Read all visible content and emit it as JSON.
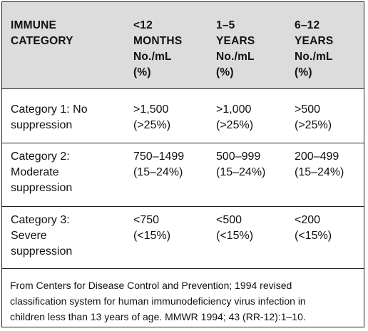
{
  "table": {
    "headers": [
      "IMMUNE\nCATEGORY",
      "<12\nMONTHS\nNo./mL\n(%)",
      "1–5\nYEARS\nNo./mL\n(%)",
      "6–12\nYEARS\nNo./mL\n(%)"
    ],
    "rows": [
      {
        "category": "Category 1: No\nsuppression",
        "col1": ">1,500\n(>25%)",
        "col2": ">1,000\n(>25%)",
        "col3": ">500\n(>25%)"
      },
      {
        "category": "Category 2:\nModerate\nsuppression",
        "col1": "750–1499\n(15–24%)",
        "col2": "500–999\n(15–24%)",
        "col3": "200–499\n(15–24%)"
      },
      {
        "category": "Category 3:\nSevere\nsuppression",
        "col1": "<750\n(<15%)",
        "col2": "<500\n(<15%)",
        "col3": "<200\n(<15%)"
      }
    ],
    "source": "From Centers for Disease Control and Prevention; 1994 revised\nclassification system for human immunodeficiency virus infection in\nchildren less than 13 years of age. MMWR 1994; 43 (RR-12):1–10."
  }
}
